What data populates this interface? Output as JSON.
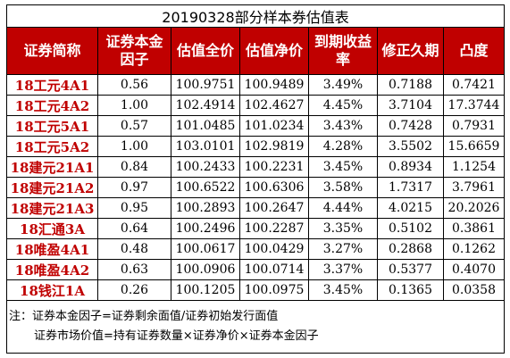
{
  "title": "20190328部分样本券估值表",
  "headers": [
    "证券简称",
    "证券本金\n因子",
    "估值全价",
    "估值净价",
    "到期收益\n率",
    "修正久期",
    "凸度"
  ],
  "rows": [
    [
      "18工元4A1",
      "0.56",
      "100.9751",
      "100.9489",
      "3.49%",
      "0.7188",
      "0.7421"
    ],
    [
      "18工元4A2",
      "1.00",
      "102.4914",
      "102.4627",
      "4.45%",
      "3.7104",
      "17.3744"
    ],
    [
      "18工元5A1",
      "0.57",
      "101.0485",
      "101.0234",
      "3.43%",
      "0.7428",
      "0.7931"
    ],
    [
      "18工元5A2",
      "1.00",
      "103.0101",
      "102.9819",
      "4.28%",
      "3.5502",
      "15.6659"
    ],
    [
      "18建元21A1",
      "0.84",
      "100.2433",
      "100.2231",
      "3.45%",
      "0.8934",
      "1.1254"
    ],
    [
      "18建元21A2",
      "0.97",
      "100.6522",
      "100.6306",
      "3.58%",
      "1.7317",
      "3.7961"
    ],
    [
      "18建元21A3",
      "0.95",
      "100.2893",
      "100.2647",
      "4.44%",
      "4.0215",
      "20.2026"
    ],
    [
      "18汇通3A",
      "0.64",
      "100.2496",
      "100.2287",
      "3.35%",
      "0.5102",
      "0.3861"
    ],
    [
      "18唯盈4A1",
      "0.48",
      "100.0617",
      "100.0429",
      "3.27%",
      "0.2868",
      "0.1262"
    ],
    [
      "18唯盈4A2",
      "0.63",
      "100.0906",
      "100.0714",
      "3.37%",
      "0.5377",
      "0.4070"
    ],
    [
      "18钱江1A",
      "0.26",
      "100.1205",
      "100.0975",
      "3.45%",
      "0.1365",
      "0.0358"
    ]
  ],
  "note": {
    "line1": "注：证券本金因子=证券剩余面值/证券初始发行面值",
    "line2": "证券市场价值=持有证券数量×证券净价×证券本金因子"
  },
  "colors": {
    "header_bg": "#c00000",
    "header_text": "#ffffff",
    "name_text": "#c00000",
    "border": "#000000"
  }
}
